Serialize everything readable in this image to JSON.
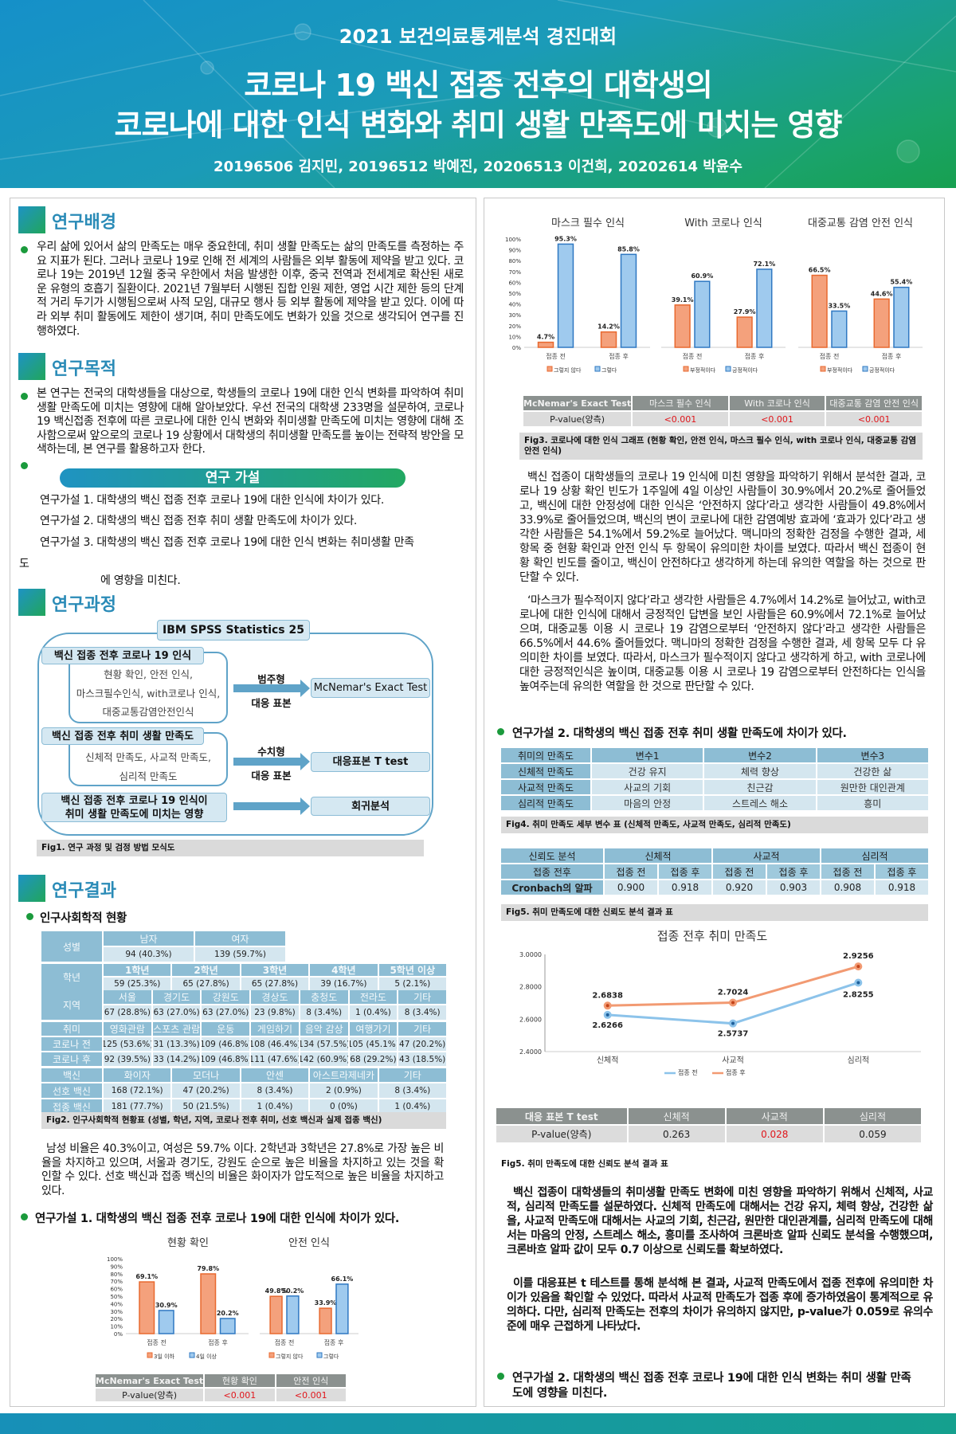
{
  "header": {
    "contest": "2021 보건의료통계분석 경진대회",
    "title_line1": "코로나 19 백신 접종 전후의 대학생의",
    "title_line2": "코로나에 대한 인식 변화와 취미 생활 만족도에 미치는 영향",
    "authors": "20196506 김지민, 20196512 박예진, 20206513 이건희, 20202614 박윤수"
  },
  "background": {
    "heading": "연구배경",
    "text": "우리 삶에 있어서 삶의 만족도는 매우 중요한데, 취미 생활 만족도는 삶의 만족도를 측정하는 주요 지표가 된다. 그러나 코로나 19로 인해 전 세계의 사람들은 외부 활동에 제약을 받고 있다. 코로나 19는 2019년 12월 중국 우한에서 처음 발생한 이후, 중국 전역과 전세계로 확산된 새로운 유형의 호흡기 질환이다. 2021년 7월부터 시행된 집합 인원 제한, 영업 시간 제한 등의 단계적 거리 두기가 시행됨으로써 사적 모임, 대규모 행사 등 외부 활동에 제약을 받고 있다. 이에 따라 외부 취미 활동에도 제한이 생기며, 취미 만족도에도 변화가 있을 것으로 생각되어 연구를 진행하였다."
  },
  "purpose": {
    "heading": "연구목적",
    "text": "본 연구는 전국의 대학생들을 대상으로, 학생들의 코로나 19에 대한 인식 변화를 파악하여 취미생활 만족도에 미치는 영향에 대해 알아보았다. 우선 전국의 대학생 233명을 설문하여, 코로나 19 백신접종 전후에 따른 코로나에 대한 인식 변화와 취미생활 만족도에 미치는 영향에 대해 조사함으로써 앞으로의 코로나 19 상황에서 대학생의 취미생활 만족도를 높이는 전략적 방안을 모색하는데, 본 연구를 활용하고자 한다."
  },
  "hypotheses": {
    "pill": "연구 가설",
    "h1": "연구가설 1. 대학생의 백신 접종 전후 코로나 19에 대한 인식에 차이가 있다.",
    "h2": "연구가설 2. 대학생의 백신 접종 전후 취미 생활 만족도에 차이가 있다.",
    "h3_part1": "연구가설 3. 대학생의 백신 접종 전후 코로나 19에 대한 인식 변화는 취미생활 만족",
    "h3_part2": "도",
    "h3_part3": "에 영향을 미친다."
  },
  "process": {
    "heading": "연구과정",
    "software": "IBM SPSS Statistics 25",
    "g1": {
      "title": "백신 접종 전후 코로나 19 인식",
      "items": [
        "현황 확인, 안전 인식,",
        "마스크필수인식, with코로나 인식,",
        "대중교통감염안전인식"
      ],
      "type": "범주형",
      "sample": "대응 표본",
      "method": "McNemar's Exact Test"
    },
    "g2": {
      "title": "백신 접종 전후 취미 생활 만족도",
      "items": [
        "신체적 만족도, 사교적 만족도,",
        "심리적 만족도"
      ],
      "type": "수치형",
      "sample": "대응 표본",
      "method": "대응표본 T test"
    },
    "g3": {
      "title_lines": [
        "백신 접종 전후 코로나 19 인식이",
        "취미 생활 만족도에 미치는 영향"
      ],
      "method": "회귀분석"
    },
    "caption": "Fig1. 연구 과정 및 검정 방법 모식도"
  },
  "results": {
    "heading": "연구결과",
    "demo_title": "인구사회학적 현황",
    "demographics": [
      {
        "label": "성별",
        "headers": [
          "남자",
          "여자"
        ],
        "rows": [
          [
            "94 (40.3%)",
            "139 (59.7%)"
          ]
        ]
      },
      {
        "label": "학년",
        "headers": [
          "1학년",
          "2학년",
          "3학년",
          "4학년",
          "5학년 이상"
        ],
        "rows": [
          [
            "59 (25.3%)",
            "65 (27.8%)",
            "65 (27.8%)",
            "39 (16.7%)",
            "5 (2.1%)"
          ]
        ]
      },
      {
        "label": "지역",
        "headers": [
          "서울",
          "경기도",
          "강원도",
          "경상도",
          "충청도",
          "전라도",
          "기타"
        ],
        "rows": [
          [
            "67 (28.8%)",
            "63 (27.0%)",
            "63 (27.0%)",
            "23 (9.8%)",
            "8 (3.4%)",
            "1 (0.4%)",
            "8 (3.4%)"
          ]
        ]
      },
      {
        "label": "취미",
        "headers": [
          "영화관람",
          "스포츠 관람",
          "운동",
          "게임하기",
          "음악 감상",
          "여행가기",
          "기타"
        ],
        "row_labels": [
          "코로나 전",
          "코로나 후"
        ],
        "rows": [
          [
            "125 (53.6%)",
            "31 (13.3%)",
            "109 (46.8%)",
            "108 (46.4%)",
            "134 (57.5%)",
            "105 (45.1%)",
            "47 (20.2%)"
          ],
          [
            "92 (39.5%)",
            "33 (14.2%)",
            "109 (46.8%)",
            "111 (47.6%)",
            "142 (60.9%)",
            "68 (29.2%)",
            "43 (18.5%)"
          ]
        ]
      },
      {
        "label": "백신",
        "headers": [
          "화이자",
          "모더나",
          "안센",
          "아스트라제네카",
          "기타"
        ],
        "row_labels": [
          "선호 백신",
          "접종 백신"
        ],
        "rows": [
          [
            "168 (72.1%)",
            "47 (20.2%)",
            "8 (3.4%)",
            "2 (0.9%)",
            "8 (3.4%)"
          ],
          [
            "181 (77.7%)",
            "50 (21.5%)",
            "1 (0.4%)",
            "0 (0%)",
            "1 (0.4%)"
          ]
        ]
      }
    ],
    "fig2_caption": "Fig2. 인구사회학적 현황표 (성별, 학년, 지역, 코로나 전후 취미, 선호 백신과 실제 접종 백신)",
    "demo_text": "남성 비율은 40.3%이고, 여성은 59.7% 이다. 2학년과 3학년은 27.8%로 가장 높은 비율을 차지하고 있으며, 서울과 경기도, 강원도 순으로 높은 비율을 차지하고 있는 것을 확인할 수 있다. 선호 백신과 접종 백신의 비율은 화이자가 압도적으로 높은 비율을 차지하고 있다.",
    "h1_title": "연구가설 1. 대학생의 백신 접종 전후 코로나 19에 대한 인식에 차이가 있다.",
    "h1_test": {
      "headers": [
        "McNemar's Exact Test",
        "현황 확인",
        "안전 인식"
      ],
      "row_label": "P-value(양측)",
      "values": [
        "<0.001",
        "<0.001"
      ]
    }
  },
  "right": {
    "fig3_test": {
      "headers": [
        "McNemar's Exact Test",
        "마스크 필수 인식",
        "With 코로나 인식",
        "대중교통 감염 안전 인식"
      ],
      "row_label": "P-value(양측)",
      "values": [
        "<0.001",
        "<0.001",
        "<0.001"
      ]
    },
    "fig3_caption": "Fig3. 코로나에 대한 인식 그래프 (현황 확인, 안전 인식, 마스크 필수 인식, with 코로나 인식, 대중교통 감염 안전 인식)",
    "h1_text_1": "백신 접종이 대학생들의 코로나 19 인식에 미친 영향을 파악하기 위해서 분석한 결과, 코로나 19 상황 확인 빈도가 1주일에 4일 이상인 사람들이 30.9%에서 20.2%로 줄어들었고, 백신에 대한 안정성에 대한 인식은 ‘안전하지 않다’라고 생각한 사람들이 49.8%에서 33.9%로 줄어들었으며, 백신의 변이 코로나에 대한 감염예방 효과에 ‘효과가 있다’라고 생각한 사람들은 54.1%에서 59.2%로 늘어났다. 맥니마의 정확한 검정을 수행한 결과, 세 항목 중 현황 확인과 안전 인식 두 항목이 유의미한 차이를 보였다. 따라서 백신 접종이 현황 확인 빈도를 줄이고, 백신이 안전하다고 생각하게 하는데 유의한 역할을 하는 것으로 판단할 수 있다.",
    "h1_text_2": "‘마스크가 필수적이지 않다’라고 생각한 사람들은 4.7%에서 14.2%로 늘어났고, with코로나에 대한 인식에 대해서 긍정적인 답변을 보인 사람들은 60.9%에서 72.1%로 늘어났으며, 대중교통 이용 시 코로나 19 감염으로부터 ‘안전하지 않다’라고 생각한 사람들은 66.5%에서 44.6% 줄어들었다. 맥니마의 정확한 검정을 수행한 결과, 세 항목 모두 다 유의미한 차이를 보였다. 따라서, 마스크가 필수적이지 않다고 생각하게 하고, with 코로나에 대한 긍정적인식은 높이며, 대중교통 이용 시 코로나 19 감염으로부터 안전하다는 인식을 높여주는데 유의한 역할을 한 것으로 판단할 수 있다.",
    "h2_title": "연구가설 2. 대학생의 백신 접종 전후 취미 생활 만족도에 차이가 있다.",
    "fig4_table": {
      "headers": [
        "취미의 만족도",
        "변수1",
        "변수2",
        "변수3"
      ],
      "rows": [
        [
          "신체적 만족도",
          "건강 유지",
          "체력 향상",
          "건강한 삶"
        ],
        [
          "사교적 만족도",
          "사교의 기회",
          "친근감",
          "원만한 대인관계"
        ],
        [
          "심리적 만족도",
          "마음의 안정",
          "스트레스 해소",
          "흥미"
        ]
      ]
    },
    "fig4_caption": "Fig4. 취미 만족도 세부 변수 표 (신체적 만족도, 사교적 만족도, 심리적 만족도)",
    "fig5_table": {
      "top": [
        "신뢰도 분석",
        "신체적",
        "사교적",
        "심리적"
      ],
      "sub_label": "접종 전후",
      "sub": [
        "접종 전",
        "접종 후",
        "접종 전",
        "접종 후",
        "접종 전",
        "접종 후"
      ],
      "row_label": "Cronbach의 알파",
      "values": [
        "0.900",
        "0.918",
        "0.920",
        "0.903",
        "0.908",
        "0.918"
      ]
    },
    "fig5_caption": "Fig5. 취미 만족도에 대한 신뢰도 분석 결과 표",
    "ttest": {
      "headers": [
        "대응 표본 T test",
        "신체적",
        "사교적",
        "심리적"
      ],
      "row_label": "P-value(양측)",
      "values": [
        "0.263",
        "0.028",
        "0.059"
      ]
    },
    "fig5b_caption": "Fig5. 취미 만족도에 대한 신뢰도 분석 결과 표",
    "h2_text_1": "백신 접종이 대학생들의 취미생활 만족도 변화에 미친 영향을 파악하기 위해서 신체적, 사교적, 심리적 만족도를 설문하였다. 신체적 만족도에 대해서는 건강 유지, 체력 향상, 건강한 삶을, 사교적 만족도애 대해서는 사교의 기회, 친근감, 원만한 대인관계를, 심리적 만족도에 대해서는 마음의 안정, 스트레스 해소, 흥미를 조사하여 크론바흐 알파 신뢰도 분석을 수행했으며, 크론바흐 알파 값이 모두 0.7 이상으로 신뢰도를 확보하였다.",
    "h2_text_2": "이를 대응표본 t 테스트를 통해 분석해 본 결과, 사교적 만족도에서 접종 전후에 유의미한 차이가 있음을 확인할 수 있었다. 따라서 사교적 만족도가 접종 후에 증가하였음이 통계적으로 유의하다. 다만, 심리적 만족도는 전후의 차이가 유의하지 않지만, p-value가 0.059로 유의수준에 매우 근접하게 나타났다.",
    "h3_title_1": "연구가설 2. 대학생의 백신 접종 전후 코로나 19에 대한 인식 변화는 취미 생활 만족",
    "h3_title_2": "도에 영향을 미친다."
  },
  "colors": {
    "accent_blue": "#2a8bb7",
    "accent_green": "#1b9a3c",
    "bar_orange": "#f4a17c",
    "bar_blue": "#9fcaee",
    "significant": "#e0161b"
  },
  "chart_data": [
    {
      "type": "bar",
      "title": "현황 확인",
      "categories": [
        "접종 전",
        "접종 후"
      ],
      "ylim": [
        0,
        100
      ],
      "yticks": [
        "0%",
        "10%",
        "20%",
        "30%",
        "40%",
        "50%",
        "60%",
        "70%",
        "80%",
        "90%",
        "100%"
      ],
      "series": [
        {
          "name": "3일 이하",
          "values": [
            69.1,
            79.8
          ]
        },
        {
          "name": "4일 이상",
          "values": [
            30.9,
            20.2
          ]
        }
      ],
      "legend": "bottom"
    },
    {
      "type": "bar",
      "title": "안전 인식",
      "categories": [
        "접종 전",
        "접종 후"
      ],
      "ylim": [
        0,
        100
      ],
      "series": [
        {
          "name": "그렇지 않다",
          "values": [
            49.8,
            33.9
          ]
        },
        {
          "name": "그렇다",
          "values": [
            50.2,
            66.1
          ]
        }
      ],
      "legend": "bottom"
    },
    {
      "type": "bar",
      "title": "마스크 필수 인식",
      "categories": [
        "접종 전",
        "접종 후"
      ],
      "ylim": [
        0,
        100
      ],
      "yticks": [
        "0%",
        "10%",
        "20%",
        "30%",
        "40%",
        "50%",
        "60%",
        "70%",
        "80%",
        "90%",
        "100%"
      ],
      "series": [
        {
          "name": "그렇지 않다",
          "values": [
            4.7,
            14.2
          ]
        },
        {
          "name": "그렇다",
          "values": [
            95.3,
            85.8
          ]
        }
      ],
      "legend": "bottom"
    },
    {
      "type": "bar",
      "title": "With 코로나 인식",
      "categories": [
        "접종 전",
        "접종 후"
      ],
      "ylim": [
        0,
        100
      ],
      "series": [
        {
          "name": "부정적이다",
          "values": [
            39.1,
            27.9
          ]
        },
        {
          "name": "긍정적이다",
          "values": [
            60.9,
            72.1
          ]
        }
      ],
      "legend": "bottom"
    },
    {
      "type": "bar",
      "title": "대중교통 감염 안전 인식",
      "categories": [
        "접종 전",
        "접종 후"
      ],
      "ylim": [
        0,
        100
      ],
      "series": [
        {
          "name": "부정적이다",
          "values": [
            66.5,
            44.6
          ]
        },
        {
          "name": "긍정적이다",
          "values": [
            33.5,
            55.4
          ]
        }
      ],
      "legend": "bottom"
    },
    {
      "type": "line",
      "title": "접종 전후 취미 만족도",
      "categories": [
        "신체적",
        "사교적",
        "심리적"
      ],
      "ylim": [
        2.4,
        3.0
      ],
      "yticks": [
        "2.4000",
        "2.6000",
        "2.8000",
        "3.0000"
      ],
      "series": [
        {
          "name": "접종 전",
          "values": [
            2.6266,
            2.5737,
            2.8255
          ]
        },
        {
          "name": "접종 후",
          "values": [
            2.6838,
            2.7024,
            2.9256
          ]
        }
      ],
      "legend": "bottom"
    }
  ]
}
